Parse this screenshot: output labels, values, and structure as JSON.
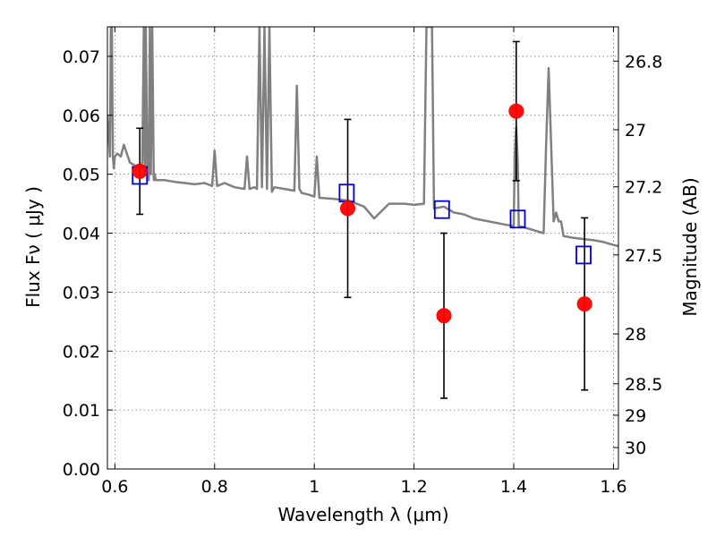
{
  "chart_data": {
    "type": "scatter",
    "title": "",
    "xlabel": "Wavelength  λ (μm)",
    "ylabel": "Flux  Fν  ( μJy )",
    "y2label": "Magnitude (AB)",
    "xlim": [
      0.585,
      1.61
    ],
    "ylim": [
      0.0,
      0.075
    ],
    "grid": true,
    "x_ticks": [
      {
        "value": 0.6,
        "label": "0.6"
      },
      {
        "value": 0.8,
        "label": "0.8"
      },
      {
        "value": 1.0,
        "label": "1"
      },
      {
        "value": 1.2,
        "label": "1.2"
      },
      {
        "value": 1.4,
        "label": "1.4"
      },
      {
        "value": 1.6,
        "label": "1.6"
      }
    ],
    "y_ticks": [
      {
        "value": 0.0,
        "label": "0.00"
      },
      {
        "value": 0.01,
        "label": "0.01"
      },
      {
        "value": 0.02,
        "label": "0.02"
      },
      {
        "value": 0.03,
        "label": "0.03"
      },
      {
        "value": 0.04,
        "label": "0.04"
      },
      {
        "value": 0.05,
        "label": "0.05"
      },
      {
        "value": 0.06,
        "label": "0.06"
      },
      {
        "value": 0.07,
        "label": "0.07"
      }
    ],
    "y2_ticks": [
      {
        "mag": 26.8,
        "label": "26.8"
      },
      {
        "mag": 27.0,
        "label": "27"
      },
      {
        "mag": 27.2,
        "label": "27.2"
      },
      {
        "mag": 27.5,
        "label": "27.5"
      },
      {
        "mag": 28.0,
        "label": "28"
      },
      {
        "mag": 28.5,
        "label": "28.5"
      },
      {
        "mag": 29.0,
        "label": "29"
      },
      {
        "mag": 30.0,
        "label": "30"
      }
    ],
    "series": [
      {
        "kind": "spectrum",
        "color": "#808080",
        "x": [
          0.585,
          0.59,
          0.592,
          0.594,
          0.596,
          0.598,
          0.6,
          0.605,
          0.612,
          0.618,
          0.62,
          0.63,
          0.64,
          0.65,
          0.655,
          0.658,
          0.66,
          0.662,
          0.665,
          0.668,
          0.67,
          0.672,
          0.675,
          0.678,
          0.68,
          0.682,
          0.685,
          0.7,
          0.72,
          0.74,
          0.76,
          0.78,
          0.795,
          0.8,
          0.805,
          0.82,
          0.84,
          0.86,
          0.865,
          0.87,
          0.88,
          0.885,
          0.89,
          0.895,
          0.9,
          0.905,
          0.91,
          0.915,
          0.92,
          0.94,
          0.96,
          0.965,
          0.97,
          0.975,
          0.99,
          1.0,
          1.005,
          1.01,
          1.04,
          1.07,
          1.1,
          1.12,
          1.15,
          1.18,
          1.2,
          1.22,
          1.225,
          1.228,
          1.232,
          1.236,
          1.24,
          1.26,
          1.28,
          1.3,
          1.32,
          1.35,
          1.38,
          1.4,
          1.402,
          1.405,
          1.408,
          1.41,
          1.42,
          1.44,
          1.46,
          1.465,
          1.47,
          1.475,
          1.48,
          1.485,
          1.49,
          1.495,
          1.5,
          1.52,
          1.54,
          1.56,
          1.58,
          1.6,
          1.61
        ],
        "y": [
          0.06,
          0.053,
          0.075,
          0.075,
          0.053,
          0.051,
          0.053,
          0.0535,
          0.053,
          0.055,
          0.0545,
          0.052,
          0.0515,
          0.051,
          0.052,
          0.075,
          0.05,
          0.075,
          0.05,
          0.049,
          0.075,
          0.05,
          0.075,
          0.049,
          0.05,
          0.049,
          0.049,
          0.049,
          0.0487,
          0.0485,
          0.0483,
          0.0485,
          0.048,
          0.054,
          0.048,
          0.0485,
          0.0478,
          0.0475,
          0.053,
          0.0475,
          0.0478,
          0.0475,
          0.075,
          0.0478,
          0.075,
          0.0475,
          0.075,
          0.047,
          0.0478,
          0.0475,
          0.0472,
          0.065,
          0.0475,
          0.0468,
          0.0465,
          0.0462,
          0.053,
          0.046,
          0.0458,
          0.0455,
          0.0445,
          0.0425,
          0.045,
          0.045,
          0.0448,
          0.045,
          0.075,
          0.075,
          0.075,
          0.075,
          0.0442,
          0.0445,
          0.0435,
          0.0432,
          0.0425,
          0.042,
          0.0415,
          0.0412,
          0.053,
          0.058,
          0.052,
          0.0412,
          0.041,
          0.0405,
          0.04,
          0.055,
          0.068,
          0.055,
          0.042,
          0.0435,
          0.042,
          0.042,
          0.0395,
          0.0392,
          0.039,
          0.0388,
          0.0385,
          0.038,
          0.0378
        ]
      },
      {
        "kind": "points",
        "marker": "circle",
        "color": "#ff0000",
        "x": [
          0.65,
          1.067,
          1.26,
          1.405,
          1.542
        ],
        "y": [
          0.0505,
          0.0442,
          0.026,
          0.0607,
          0.028
        ],
        "yerr": [
          0.0073,
          0.0151,
          0.014,
          0.0118,
          0.0146
        ]
      },
      {
        "kind": "points",
        "marker": "square",
        "color": "#0000cc",
        "x": [
          0.65,
          1.065,
          1.256,
          1.408,
          1.54
        ],
        "y": [
          0.0498,
          0.0468,
          0.044,
          0.0424,
          0.0363
        ]
      }
    ]
  }
}
